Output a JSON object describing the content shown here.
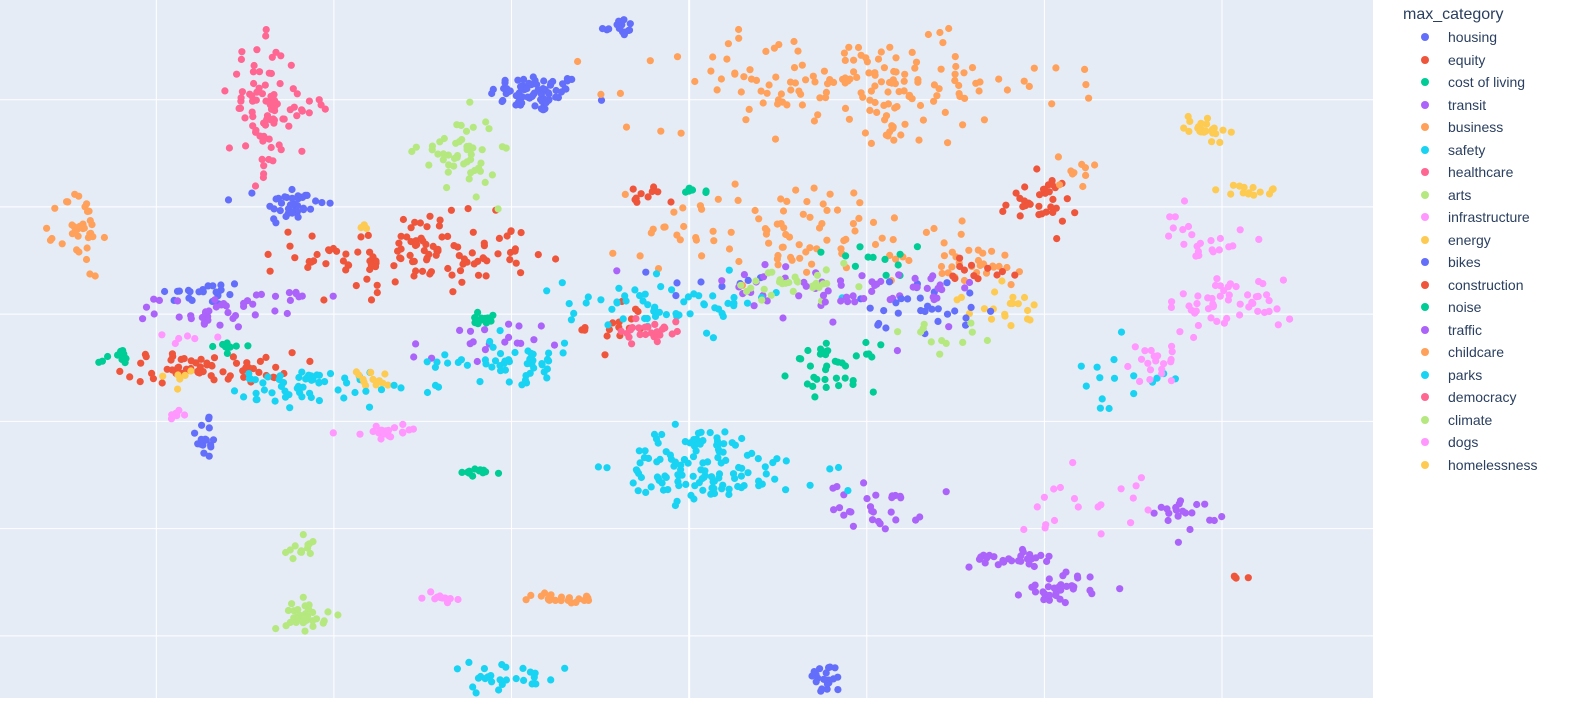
{
  "chart_data": {
    "type": "scatter",
    "title": "",
    "xlabel": "",
    "ylabel": "",
    "xlim": [
      -0.88,
      6.85
    ],
    "ylim": [
      -5.58,
      0.93
    ],
    "grid": true,
    "x_gridlines": [
      0,
      1,
      2,
      3,
      4,
      5,
      6
    ],
    "y_gridlines": [
      -5,
      -4,
      -3,
      -2,
      -1,
      0
    ],
    "legend": {
      "title": "max_category",
      "position": "right"
    },
    "series": [
      {
        "name": "housing",
        "color": "#636efa",
        "clusters": [
          {
            "center": [
              2.14,
              0.06
            ],
            "spread": [
              0.22,
              0.15
            ],
            "count": 70
          },
          {
            "center": [
              2.6,
              0.68
            ],
            "spread": [
              0.08,
              0.07
            ],
            "count": 14
          },
          {
            "center": [
              0.77,
              -0.98
            ],
            "spread": [
              0.15,
              0.16
            ],
            "count": 40
          },
          {
            "center": [
              0.25,
              -1.8
            ],
            "spread": [
              0.22,
              0.1
            ],
            "count": 22
          },
          {
            "center": [
              0.28,
              -3.15
            ],
            "spread": [
              0.05,
              0.22
            ],
            "count": 16
          },
          {
            "center": [
              3.77,
              -5.4
            ],
            "spread": [
              0.08,
              0.12
            ],
            "count": 22
          },
          {
            "center": [
              3.2,
              -1.7
            ],
            "spread": [
              0.3,
              0.15
            ],
            "count": 8
          }
        ]
      },
      {
        "name": "equity",
        "color": "#ef553b",
        "clusters": [
          {
            "center": [
              1.46,
              -1.45
            ],
            "spread": [
              0.55,
              0.3
            ],
            "count": 120
          },
          {
            "center": [
              0.3,
              -2.5
            ],
            "spread": [
              0.4,
              0.12
            ],
            "count": 60
          },
          {
            "center": [
              4.97,
              -0.95
            ],
            "spread": [
              0.18,
              0.2
            ],
            "count": 34
          },
          {
            "center": [
              2.73,
              -0.9
            ],
            "spread": [
              0.1,
              0.08
            ],
            "count": 10
          },
          {
            "center": [
              2.6,
              -2.1
            ],
            "spread": [
              0.15,
              0.2
            ],
            "count": 16
          }
        ]
      },
      {
        "name": "cost of living",
        "color": "#00cc96",
        "clusters": [
          {
            "center": [
              3.82,
              -2.5
            ],
            "spread": [
              0.2,
              0.18
            ],
            "count": 36
          },
          {
            "center": [
              1.85,
              -2.05
            ],
            "spread": [
              0.1,
              0.06
            ],
            "count": 14
          },
          {
            "center": [
              1.8,
              -3.48
            ],
            "spread": [
              0.12,
              0.03
            ],
            "count": 12
          },
          {
            "center": [
              3.05,
              -0.85
            ],
            "spread": [
              0.08,
              0.03
            ],
            "count": 8
          },
          {
            "center": [
              0.4,
              -2.3
            ],
            "spread": [
              0.1,
              0.04
            ],
            "count": 10
          },
          {
            "center": [
              -0.2,
              -2.4
            ],
            "spread": [
              0.1,
              0.08
            ],
            "count": 10
          }
        ]
      },
      {
        "name": "transit",
        "color": "#ab63fa",
        "clusters": [
          {
            "center": [
              4.05,
              -3.8
            ],
            "spread": [
              0.22,
              0.18
            ],
            "count": 30
          },
          {
            "center": [
              4.8,
              -4.28
            ],
            "spread": [
              0.18,
              0.07
            ],
            "count": 28
          },
          {
            "center": [
              5.1,
              -4.55
            ],
            "spread": [
              0.18,
              0.12
            ],
            "count": 32
          },
          {
            "center": [
              5.8,
              -3.85
            ],
            "spread": [
              0.15,
              0.12
            ],
            "count": 20
          },
          {
            "center": [
              0.3,
              -1.98
            ],
            "spread": [
              0.25,
              0.12
            ],
            "count": 30
          },
          {
            "center": [
              1.8,
              -2.3
            ],
            "spread": [
              0.3,
              0.2
            ],
            "count": 20
          },
          {
            "center": [
              3.6,
              -1.8
            ],
            "spread": [
              0.7,
              0.3
            ],
            "count": 30
          }
        ]
      },
      {
        "name": "business",
        "color": "#ffa15a",
        "clusters": [
          {
            "center": [
              3.9,
              0.15
            ],
            "spread": [
              1.0,
              0.35
            ],
            "count": 160
          },
          {
            "center": [
              3.6,
              -1.2
            ],
            "spread": [
              0.7,
              0.4
            ],
            "count": 90
          },
          {
            "center": [
              -0.43,
              -1.25
            ],
            "spread": [
              0.1,
              0.35
            ],
            "count": 36
          },
          {
            "center": [
              2.3,
              -4.65
            ],
            "spread": [
              0.16,
              0.04
            ],
            "count": 22
          },
          {
            "center": [
              4.55,
              -1.55
            ],
            "spread": [
              0.4,
              0.18
            ],
            "count": 30
          }
        ]
      },
      {
        "name": "safety",
        "color": "#19d3f3",
        "clusters": [
          {
            "center": [
              3.05,
              -3.4
            ],
            "spread": [
              0.35,
              0.3
            ],
            "count": 110
          },
          {
            "center": [
              2.0,
              -2.45
            ],
            "spread": [
              0.35,
              0.15
            ],
            "count": 50
          },
          {
            "center": [
              0.85,
              -2.6
            ],
            "spread": [
              0.3,
              0.06
            ],
            "count": 30
          },
          {
            "center": [
              2.9,
              -1.9
            ],
            "spread": [
              0.5,
              0.2
            ],
            "count": 60
          },
          {
            "center": [
              1.95,
              -5.4
            ],
            "spread": [
              0.3,
              0.12
            ],
            "count": 30
          },
          {
            "center": [
              5.4,
              -2.6
            ],
            "spread": [
              0.25,
              0.3
            ],
            "count": 16
          }
        ]
      },
      {
        "name": "healthcare",
        "color": "#ff6692",
        "clusters": [
          {
            "center": [
              0.6,
              -0.1
            ],
            "spread": [
              0.16,
              0.5
            ],
            "count": 80
          },
          {
            "center": [
              2.8,
              -2.15
            ],
            "spread": [
              0.15,
              0.12
            ],
            "count": 26
          }
        ]
      },
      {
        "name": "arts",
        "color": "#b6e880",
        "clusters": [
          {
            "center": [
              1.7,
              -0.5
            ],
            "spread": [
              0.18,
              0.3
            ],
            "count": 50
          },
          {
            "center": [
              0.85,
              -4.8
            ],
            "spread": [
              0.1,
              0.12
            ],
            "count": 34
          },
          {
            "center": [
              0.8,
              -4.2
            ],
            "spread": [
              0.08,
              0.1
            ],
            "count": 14
          },
          {
            "center": [
              3.6,
              -1.75
            ],
            "spread": [
              0.3,
              0.15
            ],
            "count": 30
          }
        ]
      },
      {
        "name": "infrastructure",
        "color": "#ff97ff",
        "clusters": [
          {
            "center": [
              6.05,
              -1.9
            ],
            "spread": [
              0.3,
              0.2
            ],
            "count": 50
          },
          {
            "center": [
              5.9,
              -1.3
            ],
            "spread": [
              0.2,
              0.25
            ],
            "count": 24
          },
          {
            "center": [
              5.6,
              -2.45
            ],
            "spread": [
              0.15,
              0.15
            ],
            "count": 20
          },
          {
            "center": [
              5.2,
              -3.7
            ],
            "spread": [
              0.3,
              0.3
            ],
            "count": 20
          },
          {
            "center": [
              1.32,
              -3.1
            ],
            "spread": [
              0.18,
              0.05
            ],
            "count": 20
          },
          {
            "center": [
              1.6,
              -4.65
            ],
            "spread": [
              0.08,
              0.04
            ],
            "count": 12
          }
        ]
      },
      {
        "name": "energy",
        "color": "#fecb52",
        "clusters": [
          {
            "center": [
              5.9,
              -0.25
            ],
            "spread": [
              0.1,
              0.1
            ],
            "count": 24
          },
          {
            "center": [
              6.15,
              -0.85
            ],
            "spread": [
              0.15,
              0.05
            ],
            "count": 14
          },
          {
            "center": [
              1.2,
              -2.6
            ],
            "spread": [
              0.1,
              0.07
            ],
            "count": 12
          },
          {
            "center": [
              4.75,
              -1.95
            ],
            "spread": [
              0.2,
              0.15
            ],
            "count": 20
          }
        ]
      },
      {
        "name": "bikes",
        "color": "#636efa",
        "clusters": [
          {
            "center": [
              4.3,
              -1.9
            ],
            "spread": [
              0.3,
              0.2
            ],
            "count": 30
          }
        ]
      },
      {
        "name": "construction",
        "color": "#ef553b",
        "clusters": [
          {
            "center": [
              4.6,
              -1.6
            ],
            "spread": [
              0.3,
              0.15
            ],
            "count": 12
          },
          {
            "center": [
              6.1,
              -4.45
            ],
            "spread": [
              0.05,
              0.05
            ],
            "count": 4
          }
        ]
      },
      {
        "name": "noise",
        "color": "#00cc96",
        "clusters": [
          {
            "center": [
              4.1,
              -1.5
            ],
            "spread": [
              0.3,
              0.2
            ],
            "count": 12
          }
        ]
      },
      {
        "name": "traffic",
        "color": "#ab63fa",
        "clusters": [
          {
            "center": [
              4.15,
              -1.8
            ],
            "spread": [
              0.4,
              0.2
            ],
            "count": 30
          },
          {
            "center": [
              0.7,
              -1.85
            ],
            "spread": [
              0.2,
              0.1
            ],
            "count": 14
          }
        ]
      },
      {
        "name": "childcare",
        "color": "#ffa15a",
        "clusters": [
          {
            "center": [
              5.2,
              -0.7
            ],
            "spread": [
              0.1,
              0.15
            ],
            "count": 10
          },
          {
            "center": [
              4.1,
              -0.3
            ],
            "spread": [
              0.15,
              0.1
            ],
            "count": 10
          }
        ]
      },
      {
        "name": "parks",
        "color": "#19d3f3",
        "clusters": [
          {
            "center": [
              0.9,
              -2.75
            ],
            "spread": [
              0.4,
              0.1
            ],
            "count": 30
          },
          {
            "center": [
              3.5,
              -3.5
            ],
            "spread": [
              0.4,
              0.2
            ],
            "count": 20
          }
        ]
      },
      {
        "name": "democracy",
        "color": "#ff6692",
        "clusters": [
          {
            "center": [
              0.85,
              -0.05
            ],
            "spread": [
              0.1,
              0.2
            ],
            "count": 10
          }
        ]
      },
      {
        "name": "climate",
        "color": "#b6e880",
        "clusters": [
          {
            "center": [
              4.4,
              -2.2
            ],
            "spread": [
              0.2,
              0.1
            ],
            "count": 12
          }
        ]
      },
      {
        "name": "dogs",
        "color": "#ff97ff",
        "clusters": [
          {
            "center": [
              0.1,
              -2.95
            ],
            "spread": [
              0.05,
              0.05
            ],
            "count": 6
          },
          {
            "center": [
              0.2,
              -2.2
            ],
            "spread": [
              0.2,
              0.05
            ],
            "count": 6
          }
        ]
      },
      {
        "name": "homelessness",
        "color": "#fecb52",
        "clusters": [
          {
            "center": [
              1.2,
              -1.15
            ],
            "spread": [
              0.05,
              0.05
            ],
            "count": 3
          },
          {
            "center": [
              0.15,
              -2.6
            ],
            "spread": [
              0.1,
              0.1
            ],
            "count": 6
          }
        ]
      }
    ]
  }
}
